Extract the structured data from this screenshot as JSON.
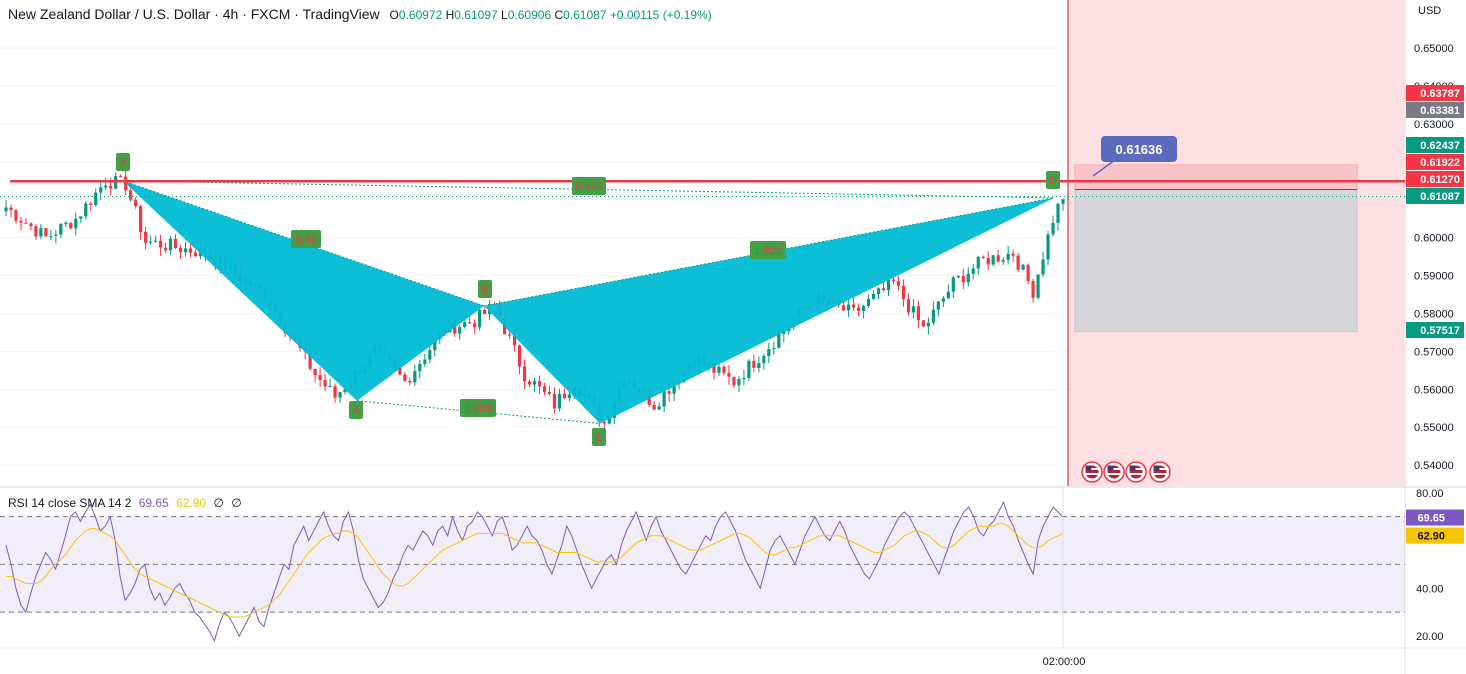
{
  "header": {
    "title": "New Zealand Dollar / U.S. Dollar · 4h · FXCM · TradingView",
    "o_label": "O",
    "o_value": "0.60972",
    "h_label": "H",
    "h_value": "0.61097",
    "l_label": "L",
    "l_value": "0.60906",
    "c_label": "C",
    "c_value": "0.61087",
    "change": "+0.00115 (+0.19%)"
  },
  "rsi_header": {
    "label": "RSI 14 close SMA 14 2",
    "rsi_value": "69.65",
    "sma_value": "62.90",
    "extra1": "∅",
    "extra2": "∅"
  },
  "colors": {
    "pattern_fill": "#00bcd4",
    "bull": "#089981",
    "bear": "#f23645",
    "resistance_line": "#e53945",
    "rsi_line": "#7e57c2",
    "sma_line": "#f7c600",
    "label_box": "#43a047",
    "target_box": "#5c6bc0"
  },
  "chart_data": [
    {
      "type": "candlestick",
      "title": "New Zealand Dollar / U.S. Dollar · 4h · FXCM · TradingView",
      "currency": "USD",
      "y_ticks": [
        "0.65000",
        "0.64000",
        "0.63000",
        "0.62000",
        "0.61000",
        "0.60000",
        "0.59000",
        "0.58000",
        "0.57000",
        "0.56000",
        "0.55000",
        "0.54000"
      ],
      "ylim": [
        0.5345,
        0.6627
      ],
      "x_tick_label": "02:00:00",
      "price_tags": [
        {
          "text": "0.63787",
          "color": "#f23645"
        },
        {
          "text": "0.63381",
          "color": "#787b86"
        },
        {
          "text": "0.62437",
          "color": "#089981"
        },
        {
          "text": "0.61922",
          "color": "#f23645"
        },
        {
          "text": "0.61270",
          "color": "#f23645"
        },
        {
          "text": "0.61087",
          "color": "#089981"
        },
        {
          "text": "0.57517",
          "color": "#089981"
        }
      ],
      "resistance_level": 0.6149,
      "harmonic_pattern": {
        "points": [
          {
            "label": "X",
            "price": 0.615
          },
          {
            "label": "A",
            "price": 0.557
          },
          {
            "label": "B",
            "price": 0.582
          },
          {
            "label": "C",
            "price": 0.551
          },
          {
            "label": "D",
            "price": 0.6105
          }
        ],
        "ratios": [
          {
            "text": "0.42"
          },
          {
            "text": "1.283"
          },
          {
            "text": "1.922"
          },
          {
            "text": "0.936"
          }
        ]
      },
      "target_label": "0.61636",
      "trade_zone": {
        "top": 0.6192,
        "entry": 0.6127,
        "bottom": 0.5752
      },
      "price_anchors": [
        {
          "i": 0,
          "p": 0.608
        },
        {
          "i": 8,
          "p": 0.6
        },
        {
          "i": 14,
          "p": 0.605
        },
        {
          "i": 20,
          "p": 0.615
        },
        {
          "i": 24,
          "p": 0.614
        },
        {
          "i": 28,
          "p": 0.599
        },
        {
          "i": 40,
          "p": 0.596
        },
        {
          "i": 52,
          "p": 0.585
        },
        {
          "i": 62,
          "p": 0.564
        },
        {
          "i": 66,
          "p": 0.558
        },
        {
          "i": 74,
          "p": 0.57
        },
        {
          "i": 80,
          "p": 0.562
        },
        {
          "i": 88,
          "p": 0.576
        },
        {
          "i": 94,
          "p": 0.578
        },
        {
          "i": 98,
          "p": 0.582
        },
        {
          "i": 104,
          "p": 0.564
        },
        {
          "i": 110,
          "p": 0.556
        },
        {
          "i": 114,
          "p": 0.562
        },
        {
          "i": 120,
          "p": 0.551
        },
        {
          "i": 124,
          "p": 0.564
        },
        {
          "i": 130,
          "p": 0.556
        },
        {
          "i": 138,
          "p": 0.568
        },
        {
          "i": 146,
          "p": 0.562
        },
        {
          "i": 152,
          "p": 0.57
        },
        {
          "i": 162,
          "p": 0.584
        },
        {
          "i": 170,
          "p": 0.58
        },
        {
          "i": 178,
          "p": 0.588
        },
        {
          "i": 184,
          "p": 0.576
        },
        {
          "i": 190,
          "p": 0.588
        },
        {
          "i": 196,
          "p": 0.594
        },
        {
          "i": 202,
          "p": 0.596
        },
        {
          "i": 206,
          "p": 0.586
        },
        {
          "i": 210,
          "p": 0.605
        },
        {
          "i": 212,
          "p": 0.6109
        }
      ]
    },
    {
      "type": "line",
      "title": "RSI 14 close SMA 14 2",
      "ylim": [
        15,
        82
      ],
      "y_ticks": [
        "80.00",
        "40.00",
        "20.00"
      ],
      "bands": [
        70,
        50,
        30
      ],
      "series": [
        {
          "name": "RSI",
          "last_value": 69.65,
          "color": "#7e57c2",
          "values": [
            58,
            50,
            40,
            33,
            30,
            38,
            45,
            50,
            55,
            52,
            48,
            55,
            62,
            70,
            72,
            68,
            72,
            75,
            70,
            64,
            66,
            70,
            60,
            45,
            35,
            38,
            42,
            48,
            50,
            40,
            35,
            38,
            33,
            36,
            40,
            42,
            38,
            35,
            30,
            28,
            25,
            22,
            18,
            25,
            30,
            28,
            24,
            20,
            24,
            28,
            32,
            26,
            24,
            32,
            38,
            44,
            50,
            48,
            58,
            62,
            66,
            60,
            64,
            68,
            72,
            66,
            62,
            60,
            68,
            72,
            64,
            52,
            44,
            40,
            36,
            32,
            34,
            38,
            44,
            48,
            54,
            58,
            56,
            60,
            64,
            62,
            58,
            64,
            66,
            62,
            70,
            64,
            60,
            66,
            68,
            72,
            70,
            66,
            62,
            68,
            70,
            64,
            56,
            58,
            62,
            66,
            62,
            60,
            56,
            50,
            46,
            52,
            58,
            66,
            62,
            56,
            50,
            45,
            40,
            44,
            48,
            52,
            54,
            50,
            58,
            64,
            68,
            72,
            66,
            60,
            66,
            70,
            64,
            60,
            56,
            52,
            48,
            46,
            50,
            54,
            58,
            62,
            60,
            66,
            70,
            72,
            68,
            64,
            58,
            52,
            48,
            44,
            40,
            48,
            56,
            60,
            62,
            58,
            54,
            50,
            56,
            62,
            66,
            70,
            66,
            62,
            60,
            64,
            68,
            64,
            58,
            54,
            50,
            46,
            44,
            48,
            52,
            58,
            62,
            66,
            70,
            72,
            70,
            66,
            62,
            58,
            54,
            50,
            46,
            52,
            58,
            64,
            68,
            72,
            74,
            70,
            64,
            62,
            66,
            68,
            72,
            76,
            70,
            66,
            60,
            55,
            50,
            46,
            60,
            66,
            70,
            74,
            72,
            69.65
          ]
        },
        {
          "name": "SMA",
          "last_value": 62.9,
          "color": "#f7c600",
          "values": [
            45,
            45,
            44,
            43,
            42,
            42,
            42,
            43,
            45,
            48,
            50,
            52,
            54,
            57,
            60,
            62,
            64,
            65,
            65,
            64,
            63,
            62,
            60,
            57,
            54,
            51,
            48,
            46,
            45,
            44,
            43,
            42,
            41,
            40,
            39,
            38,
            37,
            36,
            35,
            34,
            33,
            32,
            31,
            30,
            29,
            28,
            28,
            28,
            28,
            29,
            30,
            31,
            32,
            33,
            35,
            37,
            40,
            43,
            46,
            49,
            52,
            55,
            57,
            59,
            61,
            62,
            63,
            63,
            64,
            64,
            63,
            61,
            58,
            55,
            52,
            49,
            46,
            44,
            42,
            41,
            41,
            42,
            44,
            46,
            48,
            50,
            52,
            54,
            56,
            57,
            58,
            59,
            60,
            61,
            62,
            63,
            63,
            63,
            63,
            63,
            63,
            62,
            61,
            60,
            59,
            59,
            59,
            59,
            58,
            57,
            56,
            55,
            55,
            55,
            55,
            55,
            54,
            53,
            52,
            51,
            51,
            51,
            51,
            52,
            53,
            55,
            57,
            59,
            60,
            61,
            62,
            62,
            62,
            61,
            60,
            59,
            58,
            57,
            56,
            56,
            56,
            57,
            58,
            59,
            60,
            61,
            62,
            63,
            63,
            62,
            61,
            59,
            57,
            55,
            54,
            54,
            55,
            56,
            57,
            57,
            58,
            59,
            60,
            61,
            62,
            62,
            62,
            62,
            62,
            61,
            60,
            59,
            58,
            57,
            56,
            55,
            55,
            56,
            57,
            58,
            60,
            62,
            63,
            64,
            64,
            63,
            62,
            60,
            58,
            57,
            57,
            58,
            60,
            62,
            64,
            65,
            66,
            66,
            66,
            66,
            67,
            67,
            66,
            64,
            62,
            60,
            58,
            57,
            57,
            58,
            60,
            61,
            62,
            62.9
          ]
        }
      ],
      "rsi_tag": "69.65",
      "sma_tag": "62.90"
    }
  ]
}
